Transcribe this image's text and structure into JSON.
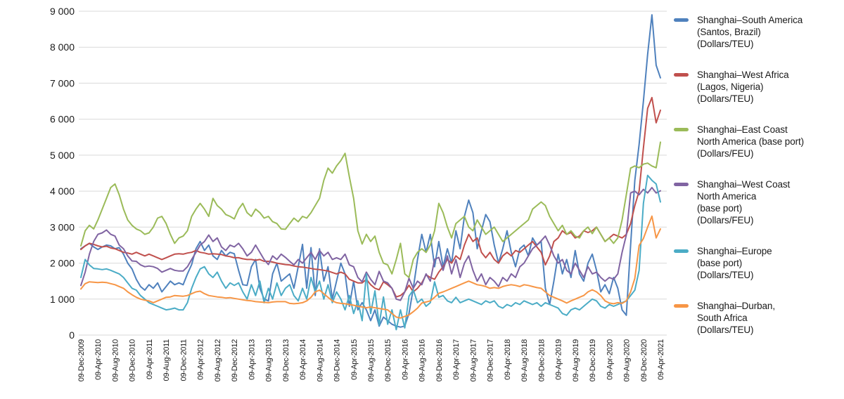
{
  "colors": {
    "grid": "#d9d9d9",
    "text": "#1a1a1a",
    "background": "#ffffff"
  },
  "chart_data": {
    "type": "line",
    "title": "",
    "xlabel": "",
    "ylabel": "",
    "ylim": [
      0,
      9000
    ],
    "grid": "horizontal",
    "legend_position": "right",
    "points_count": 137,
    "x_start": "09-Dec-2009",
    "x_end": "09-Apr-2021",
    "x_interval": "monthly",
    "y_tick_values": [
      0,
      1000,
      2000,
      3000,
      4000,
      5000,
      6000,
      7000,
      8000,
      9000
    ],
    "y_tick_labels": [
      "0",
      "1 000",
      "2 000",
      "3 000",
      "4 000",
      "5 000",
      "6 000",
      "7 000",
      "8 000",
      "9 000"
    ],
    "x_tick_labels": [
      "09-Dec-2009",
      "09-Apr-2010",
      "09-Aug-2010",
      "09-Dec-2010",
      "09-Apr-2011",
      "09-Aug-2011",
      "09-Dec-2011",
      "09-Apr-2012",
      "09-Aug-2012",
      "09-Dec-2012",
      "09-Apr-2013",
      "09-Aug-2013",
      "09-Dec-2013",
      "09-Apr-2014",
      "09-Aug-2014",
      "09-Dec-2014",
      "09-Apr-2015",
      "09-Aug-2015",
      "09-Dec-2015",
      "09-Apr-2016",
      "09-Aug-2016",
      "09-Dec-2016",
      "09-Apr-2017",
      "09-Aug-2017",
      "09-Dec-2017",
      "09-Apr-2018",
      "09-Aug-2018",
      "09-Dec-2018",
      "09-Apr-2019",
      "09-Aug-2019",
      "09-Dec-2019",
      "09-Apr-2020",
      "09-Aug-2020",
      "09-Dec-2020",
      "09-Apr-2021"
    ],
    "series": [
      {
        "name": "Shanghai–South America (Santos, Brazil) (Dollars/TEU)",
        "color": "#4F81BD",
        "values": [
          2400,
          2480,
          2550,
          2450,
          2380,
          2450,
          2500,
          2480,
          2400,
          2430,
          2250,
          2000,
          1840,
          1550,
          1350,
          1250,
          1400,
          1300,
          1450,
          1200,
          1350,
          1500,
          1400,
          1450,
          1400,
          1700,
          1960,
          2400,
          2600,
          2350,
          2500,
          2200,
          2100,
          2350,
          2200,
          2300,
          2260,
          1800,
          1400,
          1380,
          1900,
          2100,
          1300,
          1000,
          950,
          1700,
          2000,
          1500,
          1600,
          1700,
          1300,
          1900,
          2520,
          1300,
          2430,
          1100,
          2400,
          1500,
          1900,
          1000,
          1500,
          2000,
          1700,
          800,
          1500,
          700,
          900,
          700,
          400,
          700,
          250,
          500,
          400,
          300,
          250,
          220,
          250,
          600,
          1300,
          2100,
          2800,
          2300,
          2800,
          1900,
          2600,
          1900,
          2400,
          2000,
          2900,
          2400,
          3300,
          3750,
          3400,
          2400,
          2900,
          3350,
          3150,
          2500,
          2000,
          2400,
          2900,
          2300,
          1900,
          2400,
          2500,
          2200,
          2700,
          2500,
          2600,
          1300,
          850,
          1500,
          2250,
          1700,
          2100,
          1600,
          2350,
          1700,
          1500,
          2000,
          2250,
          1800,
          1200,
          1400,
          1150,
          1600,
          1300,
          700,
          550,
          2500,
          4300,
          5300,
          6500,
          7800,
          8900,
          7500,
          7150
        ]
      },
      {
        "name": "Shanghai–West Africa (Lagos, Nigeria) (Dollars/TEU)",
        "color": "#C0504D",
        "values": [
          2380,
          2480,
          2550,
          2520,
          2480,
          2450,
          2470,
          2420,
          2400,
          2350,
          2300,
          2280,
          2250,
          2300,
          2250,
          2200,
          2250,
          2200,
          2150,
          2100,
          2150,
          2200,
          2250,
          2260,
          2250,
          2280,
          2300,
          2350,
          2300,
          2280,
          2250,
          2260,
          2250,
          2240,
          2200,
          2180,
          2150,
          2150,
          2120,
          2100,
          2100,
          2080,
          2100,
          2050,
          2050,
          2030,
          2000,
          1980,
          1960,
          1950,
          1920,
          1900,
          1890,
          1870,
          1850,
          1830,
          1820,
          1800,
          1780,
          1740,
          1700,
          1750,
          1700,
          1550,
          1500,
          1450,
          1450,
          1550,
          1400,
          1300,
          1260,
          1480,
          1400,
          1300,
          1060,
          1100,
          1200,
          1385,
          1200,
          1300,
          1450,
          1675,
          1600,
          1550,
          1750,
          1900,
          2100,
          2000,
          2200,
          2100,
          2500,
          2800,
          2600,
          2700,
          2300,
          2150,
          2300,
          2100,
          2000,
          2200,
          2300,
          2200,
          2350,
          2300,
          2400,
          2500,
          2600,
          2450,
          2300,
          1950,
          2200,
          2600,
          2700,
          2900,
          2800,
          2850,
          2700,
          2750,
          2900,
          2850,
          2900,
          3000,
          2800,
          2600,
          2700,
          2800,
          2750,
          2700,
          2800,
          3100,
          3600,
          4000,
          5200,
          6300,
          6600,
          5900,
          6250
        ]
      },
      {
        "name": "Shanghai–East Coast North America (base port) (Dollars/FEU)",
        "color": "#9BBB59",
        "values": [
          2480,
          2900,
          3050,
          2950,
          3200,
          3500,
          3800,
          4100,
          4200,
          3900,
          3500,
          3200,
          3050,
          2950,
          2900,
          2800,
          2840,
          3000,
          3250,
          3300,
          3100,
          2800,
          2550,
          2700,
          2750,
          2900,
          3300,
          3500,
          3660,
          3500,
          3300,
          3800,
          3600,
          3500,
          3350,
          3300,
          3230,
          3500,
          3660,
          3400,
          3300,
          3500,
          3400,
          3250,
          3300,
          3150,
          3100,
          2950,
          2940,
          3100,
          3250,
          3150,
          3300,
          3250,
          3400,
          3600,
          3800,
          4300,
          4640,
          4500,
          4700,
          4850,
          5050,
          4400,
          3800,
          2900,
          2530,
          2800,
          2600,
          2750,
          2300,
          2000,
          1950,
          1700,
          2100,
          2550,
          1700,
          1600,
          2100,
          2300,
          2400,
          2300,
          2500,
          2900,
          3660,
          3400,
          3000,
          2700,
          3100,
          3200,
          3300,
          3000,
          2900,
          3200,
          3000,
          2800,
          2900,
          3000,
          2800,
          2600,
          2700,
          2800,
          2900,
          3000,
          3100,
          3200,
          3500,
          3600,
          3700,
          3600,
          3300,
          3100,
          2900,
          3050,
          2800,
          2900,
          2750,
          2700,
          2900,
          3000,
          2820,
          3000,
          2800,
          2600,
          2700,
          2550,
          2700,
          3200,
          3900,
          4640,
          4700,
          4650,
          4750,
          4780,
          4700,
          4650,
          5360
        ]
      },
      {
        "name": "Shanghai–West Coast North America (base port) (Dollars/FEU)",
        "color": "#8064A2",
        "values": [
          1380,
          1750,
          2250,
          2600,
          2800,
          2840,
          2920,
          2800,
          2750,
          2500,
          2400,
          2200,
          2060,
          2050,
          1950,
          1900,
          1920,
          1900,
          1850,
          1750,
          1800,
          1850,
          1800,
          1780,
          1780,
          1900,
          2100,
          2300,
          2500,
          2600,
          2780,
          2600,
          2700,
          2450,
          2350,
          2500,
          2450,
          2550,
          2400,
          2200,
          2300,
          2500,
          2300,
          2100,
          1960,
          2200,
          2100,
          2250,
          2160,
          2050,
          1950,
          2100,
          2000,
          2150,
          2300,
          2100,
          2350,
          2200,
          2300,
          2100,
          2150,
          2100,
          2250,
          1950,
          1900,
          1600,
          1480,
          1750,
          1550,
          1400,
          1770,
          1500,
          1450,
          1300,
          1000,
          965,
          1200,
          1575,
          1300,
          1500,
          1400,
          1700,
          1500,
          2100,
          2160,
          1800,
          2200,
          1700,
          2100,
          1600,
          2000,
          2200,
          1800,
          1500,
          1700,
          1400,
          1600,
          1500,
          1350,
          1600,
          1500,
          1700,
          1600,
          1900,
          2000,
          2200,
          2400,
          2500,
          2620,
          2750,
          2500,
          2200,
          2000,
          2100,
          1800,
          1700,
          2000,
          1800,
          1600,
          1900,
          1700,
          1750,
          1600,
          1500,
          1600,
          1550,
          1700,
          2300,
          2780,
          3950,
          4000,
          3900,
          4050,
          3950,
          4100,
          3950,
          4010
        ]
      },
      {
        "name": "Shanghai–Europe (base port) (Dollars/TEU)",
        "color": "#4BACC6",
        "values": [
          1600,
          2100,
          1950,
          1850,
          1840,
          1820,
          1840,
          1800,
          1750,
          1700,
          1600,
          1450,
          1300,
          1250,
          1100,
          1000,
          900,
          850,
          800,
          750,
          700,
          720,
          750,
          700,
          700,
          900,
          1300,
          1600,
          1840,
          1900,
          1700,
          1600,
          1750,
          1500,
          1300,
          1450,
          1380,
          1450,
          1200,
          1000,
          1400,
          1100,
          1500,
          900,
          1300,
          1000,
          1450,
          1100,
          1300,
          1400,
          1100,
          950,
          1300,
          1000,
          1600,
          1200,
          1500,
          1000,
          1400,
          900,
          1200,
          1000,
          700,
          1100,
          600,
          950,
          400,
          1700,
          600,
          1230,
          280,
          1060,
          300,
          700,
          150,
          700,
          200,
          1080,
          1255,
          900,
          1000,
          800,
          900,
          1480,
          1050,
          1100,
          950,
          900,
          1050,
          900,
          950,
          1000,
          950,
          900,
          850,
          950,
          900,
          950,
          800,
          750,
          850,
          800,
          900,
          850,
          950,
          900,
          850,
          900,
          800,
          900,
          850,
          800,
          750,
          600,
          550,
          700,
          750,
          700,
          800,
          900,
          1000,
          950,
          800,
          750,
          850,
          800,
          850,
          900,
          950,
          1100,
          1250,
          1800,
          3660,
          4440,
          4300,
          4200,
          3700
        ]
      },
      {
        "name": "Shanghai–Durban, South Africa (Dollars/TEU)",
        "color": "#F79646",
        "values": [
          1280,
          1430,
          1480,
          1470,
          1460,
          1470,
          1460,
          1430,
          1400,
          1350,
          1300,
          1200,
          1120,
          1050,
          1000,
          970,
          950,
          900,
          950,
          1000,
          1050,
          1060,
          1100,
          1090,
          1080,
          1100,
          1150,
          1200,
          1220,
          1150,
          1100,
          1080,
          1060,
          1050,
          1030,
          1040,
          1020,
          1000,
          980,
          960,
          950,
          930,
          920,
          910,
          900,
          920,
          930,
          930,
          930,
          880,
          870,
          880,
          900,
          950,
          1050,
          1200,
          1250,
          1150,
          1050,
          950,
          900,
          880,
          870,
          850,
          830,
          800,
          780,
          760,
          780,
          760,
          740,
          720,
          700,
          600,
          500,
          475,
          520,
          560,
          650,
          750,
          890,
          920,
          950,
          1050,
          1160,
          1200,
          1250,
          1300,
          1350,
          1400,
          1450,
          1500,
          1450,
          1400,
          1380,
          1350,
          1300,
          1320,
          1300,
          1350,
          1380,
          1400,
          1380,
          1350,
          1400,
          1380,
          1350,
          1320,
          1300,
          1200,
          1100,
          1050,
          1000,
          950,
          890,
          950,
          1000,
          1050,
          1100,
          1200,
          1260,
          1200,
          1100,
          950,
          890,
          870,
          900,
          880,
          950,
          1200,
          1575,
          2490,
          2685,
          3000,
          3305,
          2700,
          2950
        ]
      }
    ]
  },
  "legend": {
    "items": [
      {
        "color": "#4F81BD",
        "lines": [
          "Shanghai–South America",
          "(Santos, Brazil)",
          "(Dollars/TEU)"
        ]
      },
      {
        "color": "#C0504D",
        "lines": [
          "Shanghai–West Africa",
          "(Lagos, Nigeria)",
          "(Dollars/TEU)"
        ]
      },
      {
        "color": "#9BBB59",
        "lines": [
          "Shanghai–East Coast",
          "North America (base port)",
          "(Dollars/FEU)"
        ]
      },
      {
        "color": "#8064A2",
        "lines": [
          "Shanghai–West Coast",
          "North America",
          "(base port)",
          "(Dollars/FEU)"
        ]
      },
      {
        "color": "#4BACC6",
        "lines": [
          "Shanghai–Europe",
          "(base port)",
          "(Dollars/TEU)"
        ]
      },
      {
        "color": "#F79646",
        "lines": [
          "Shanghai–Durban,",
          "South Africa",
          "(Dollars/TEU)"
        ]
      }
    ]
  }
}
